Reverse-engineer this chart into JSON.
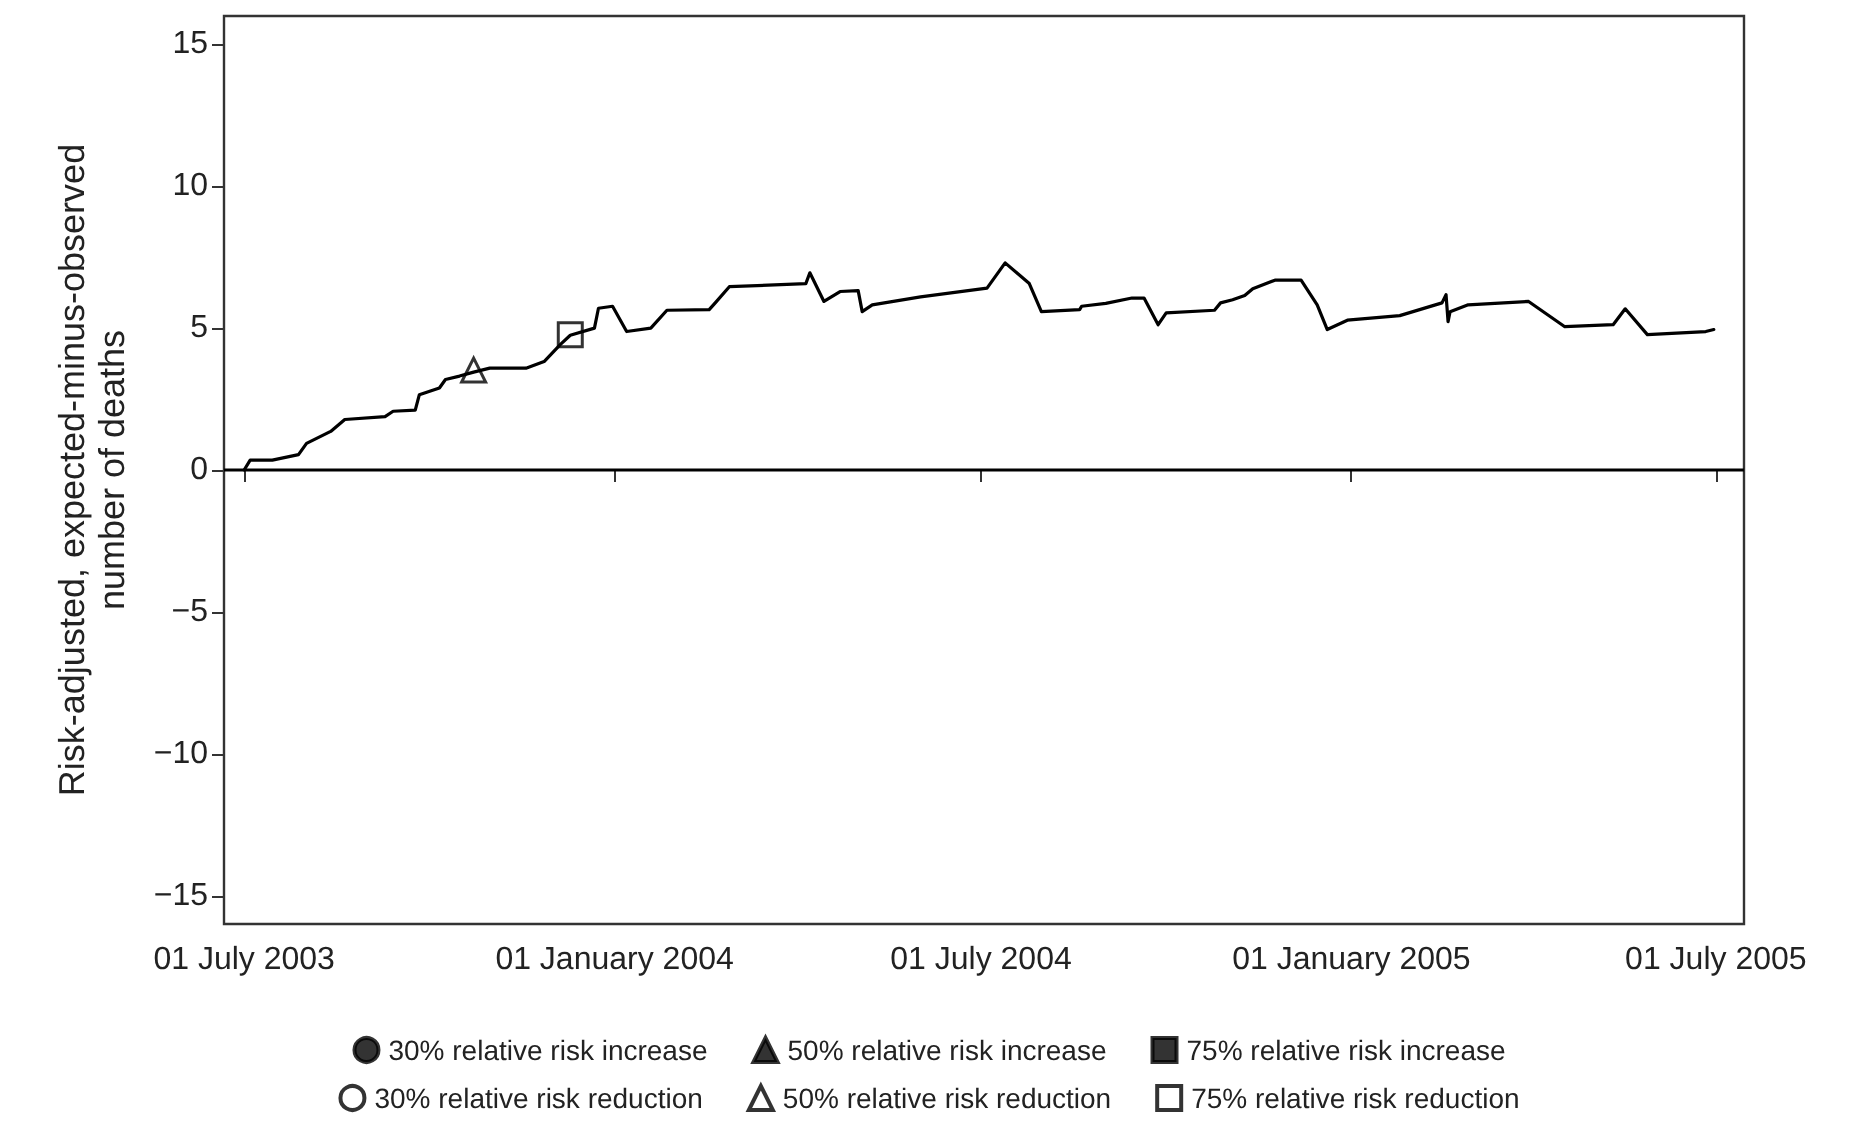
{
  "chart_data": {
    "type": "line",
    "ylabel": "Risk-adjusted, expected-minus-observed number of deaths",
    "xlim": [
      "2003-06-21",
      "2005-07-15"
    ],
    "xticks": [
      {
        "value": "2003-07-01",
        "label": "01 July 2003"
      },
      {
        "value": "2004-01-01",
        "label": "01 January 2004"
      },
      {
        "value": "2004-07-01",
        "label": "01 July 2004"
      },
      {
        "value": "2005-01-01",
        "label": "01 January 2005"
      },
      {
        "value": "2005-07-01",
        "label": "01 July 2005"
      }
    ],
    "ylim": [
      -16,
      16
    ],
    "yticks": [
      {
        "value": -15,
        "label": "−15"
      },
      {
        "value": -10,
        "label": "−10"
      },
      {
        "value": -5,
        "label": "−5"
      },
      0,
      5,
      10,
      15
    ],
    "grid": false,
    "legend": "bottom",
    "marker": "none",
    "line_style": "solid",
    "ref_lines": [
      {
        "axis": "y",
        "value": 0,
        "color": "#000000"
      }
    ],
    "series": [
      {
        "color": "#000000",
        "x": [
          "2003-07-01",
          "2003-07-04",
          "2003-07-15",
          "2003-07-28",
          "2003-08-01",
          "2003-08-13",
          "2003-08-20",
          "2003-09-09",
          "2003-09-13",
          "2003-09-24",
          "2003-09-26",
          "2003-10-06",
          "2003-10-09",
          "2003-10-16",
          "2003-10-23",
          "2003-10-31",
          "2003-11-18",
          "2003-11-27",
          "2003-12-05",
          "2003-12-10",
          "2003-12-22",
          "2003-12-24",
          "2003-12-31",
          "2004-01-07",
          "2004-01-19",
          "2004-01-27",
          "2004-02-17",
          "2004-02-20",
          "2004-02-27",
          "2004-04-05",
          "2004-04-07",
          "2004-04-14",
          "2004-04-22",
          "2004-05-01",
          "2004-05-03",
          "2004-05-08",
          "2004-06-01",
          "2004-07-04",
          "2004-07-13",
          "2004-07-25",
          "2004-07-31",
          "2004-08-19",
          "2004-08-20",
          "2004-09-01",
          "2004-09-14",
          "2004-09-20",
          "2004-09-27",
          "2004-10-01",
          "2004-10-25",
          "2004-10-28",
          "2004-11-03",
          "2004-11-09",
          "2004-11-13",
          "2004-11-24",
          "2004-12-07",
          "2004-12-15",
          "2004-12-20",
          "2004-12-30",
          "2005-01-25",
          "2005-02-15",
          "2005-02-17",
          "2005-02-18",
          "2005-02-19",
          "2005-02-28",
          "2005-03-30",
          "2005-04-17",
          "2005-05-11",
          "2005-05-17",
          "2005-05-28",
          "2005-06-26",
          "2005-06-30"
        ],
        "values": [
          0,
          0.35,
          0.35,
          0.54,
          0.94,
          1.36,
          1.78,
          1.88,
          2.07,
          2.11,
          2.65,
          2.89,
          3.19,
          3.31,
          3.45,
          3.59,
          3.59,
          3.82,
          4.42,
          4.75,
          5.0,
          5.7,
          5.77,
          4.88,
          5.0,
          5.63,
          5.65,
          5.89,
          6.46,
          6.57,
          6.95,
          5.94,
          6.29,
          6.32,
          5.58,
          5.82,
          6.1,
          6.41,
          7.3,
          6.57,
          5.58,
          5.65,
          5.77,
          5.87,
          6.06,
          6.06,
          5.12,
          5.54,
          5.63,
          5.89,
          6.0,
          6.15,
          6.39,
          6.69,
          6.69,
          5.82,
          4.95,
          5.28,
          5.44,
          5.89,
          6.18,
          5.23,
          5.58,
          5.82,
          5.94,
          5.05,
          5.12,
          5.68,
          4.77,
          4.88,
          4.95
        ]
      },
      {
        "type": "scatter",
        "name": "30% relative risk increase",
        "color": "#000000",
        "marker": "circle"
      },
      {
        "type": "scatter",
        "name": "50% relative risk increase",
        "color": "#000000",
        "marker": "triangle"
      },
      {
        "type": "scatter",
        "name": "75% relative risk increase",
        "color": "#000000",
        "marker": "square"
      },
      {
        "type": "scatter",
        "name": "30% relative risk reduction",
        "color": "#ffffff",
        "marker": "circle"
      },
      {
        "type": "scatter",
        "name": "50% relative risk reduction",
        "color": "#ffffff",
        "marker": "triangle",
        "x": [
          "2003-10-23"
        ],
        "values": [
          3.52
        ]
      },
      {
        "type": "scatter",
        "name": "75% relative risk reduction",
        "color": "#ffffff",
        "marker": "square",
        "x": [
          "2003-12-10"
        ],
        "values": [
          4.77
        ]
      }
    ]
  }
}
